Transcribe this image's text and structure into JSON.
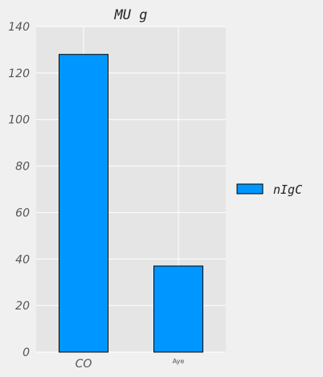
{
  "chart_data": {
    "type": "bar",
    "title": "MU  g",
    "categories": [
      "CO",
      "Aye"
    ],
    "series": [
      {
        "name": "nIgC",
        "values": [
          128,
          37
        ]
      }
    ],
    "ylim": [
      0,
      140
    ],
    "yticks": [
      0,
      20,
      40,
      60,
      80,
      100,
      120,
      140
    ],
    "grid": true,
    "legend": "right",
    "colors": {
      "bar": "#0096ff",
      "plot_bg": "#e5e5e5",
      "grid": "#ffffff",
      "page_bg": "#f0f0f0"
    }
  }
}
